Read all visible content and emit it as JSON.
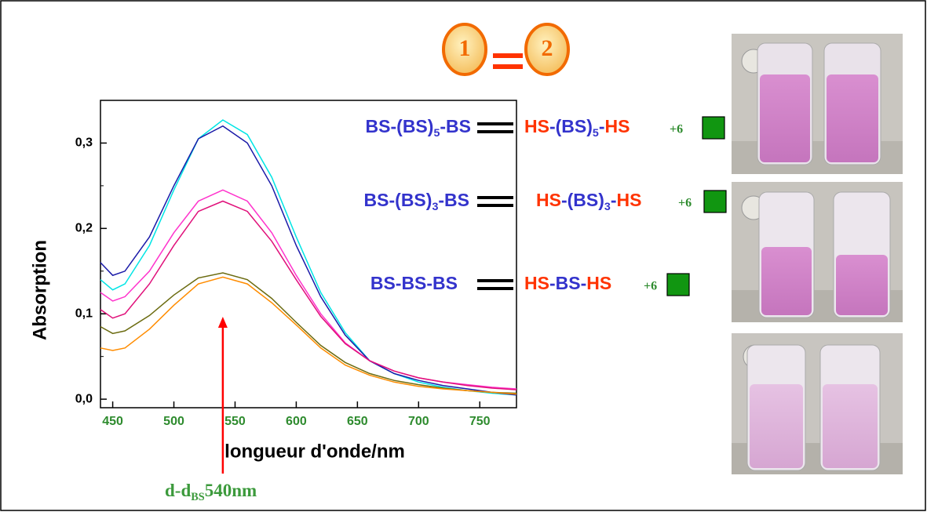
{
  "chart_data": {
    "type": "line",
    "ylabel": "Absorption",
    "xlabel": "longueur d'onde/nm",
    "x": [
      440,
      450,
      460,
      480,
      500,
      520,
      540,
      560,
      580,
      600,
      620,
      640,
      660,
      680,
      700,
      720,
      740,
      760,
      780
    ],
    "series": [
      {
        "color": "#00e5e5",
        "values": [
          0.14,
          0.128,
          0.135,
          0.18,
          0.245,
          0.305,
          0.327,
          0.31,
          0.26,
          0.19,
          0.125,
          0.078,
          0.045,
          0.03,
          0.02,
          0.014,
          0.01,
          0.007,
          0.005
        ]
      },
      {
        "color": "#1a1aa8",
        "values": [
          0.16,
          0.145,
          0.15,
          0.19,
          0.25,
          0.305,
          0.32,
          0.3,
          0.25,
          0.18,
          0.12,
          0.075,
          0.045,
          0.03,
          0.022,
          0.016,
          0.012,
          0.008,
          0.005
        ]
      },
      {
        "color": "#ff33cc",
        "values": [
          0.125,
          0.115,
          0.12,
          0.15,
          0.195,
          0.232,
          0.245,
          0.232,
          0.195,
          0.145,
          0.1,
          0.066,
          0.045,
          0.033,
          0.025,
          0.02,
          0.017,
          0.014,
          0.012
        ]
      },
      {
        "color": "#e0107a",
        "values": [
          0.105,
          0.095,
          0.1,
          0.135,
          0.18,
          0.22,
          0.232,
          0.22,
          0.185,
          0.14,
          0.097,
          0.065,
          0.045,
          0.033,
          0.025,
          0.02,
          0.016,
          0.013,
          0.011
        ]
      },
      {
        "color": "#6b6b10",
        "values": [
          0.085,
          0.077,
          0.08,
          0.098,
          0.122,
          0.142,
          0.148,
          0.14,
          0.118,
          0.09,
          0.063,
          0.043,
          0.03,
          0.022,
          0.017,
          0.013,
          0.01,
          0.008,
          0.007
        ]
      },
      {
        "color": "#ff8c00",
        "values": [
          0.06,
          0.057,
          0.06,
          0.082,
          0.11,
          0.135,
          0.143,
          0.135,
          0.113,
          0.087,
          0.06,
          0.04,
          0.028,
          0.02,
          0.015,
          0.012,
          0.01,
          0.008,
          0.006
        ]
      }
    ],
    "xlim": [
      440,
      780
    ],
    "ylim": [
      -0.01,
      0.35
    ],
    "xticks": [
      450,
      500,
      550,
      600,
      650,
      700,
      750
    ],
    "yticks": [
      {
        "value": 0,
        "label": "0,0"
      },
      {
        "value": 0.1,
        "label": "0,1"
      },
      {
        "value": 0.2,
        "label": "0,2"
      },
      {
        "value": 0.3,
        "label": "0,3"
      }
    ],
    "x_tick_color": "#2e8b2e",
    "peak_annotation": {
      "x": 540,
      "parts": [
        {
          "text": "d-d"
        },
        {
          "text": "BS",
          "sub": true
        },
        {
          "text": "540nm"
        }
      ]
    },
    "equilibrium_labels": [
      "1",
      "2"
    ],
    "equilibria": [
      {
        "left": [
          {
            "text": "BS-(BS)",
            "color": "#3333cc"
          },
          {
            "text": "5",
            "color": "#3333cc",
            "sub": true
          },
          {
            "text": "-BS",
            "color": "#3333cc"
          }
        ],
        "right": [
          {
            "text": "HS",
            "color": "#ff3300"
          },
          {
            "text": "-(BS)",
            "color": "#3333cc"
          },
          {
            "text": "5",
            "color": "#3333cc",
            "sub": true
          },
          {
            "text": "-",
            "color": "#3333cc"
          },
          {
            "text": "HS",
            "color": "#ff3300"
          }
        ],
        "extra": "+6"
      },
      {
        "left": [
          {
            "text": "BS-(BS)",
            "color": "#3333cc"
          },
          {
            "text": "3",
            "color": "#3333cc",
            "sub": true
          },
          {
            "text": "-BS",
            "color": "#3333cc"
          }
        ],
        "right": [
          {
            "text": "HS",
            "color": "#ff3300"
          },
          {
            "text": "-(BS)",
            "color": "#3333cc"
          },
          {
            "text": "3",
            "color": "#3333cc",
            "sub": true
          },
          {
            "text": "-",
            "color": "#3333cc"
          },
          {
            "text": "HS",
            "color": "#ff3300"
          }
        ],
        "extra": "+6"
      },
      {
        "left": [
          {
            "text": "BS-BS-BS",
            "color": "#3333cc"
          }
        ],
        "right": [
          {
            "text": "HS",
            "color": "#ff3300"
          },
          {
            "text": "-BS-",
            "color": "#3333cc"
          },
          {
            "text": "HS",
            "color": "#ff3300"
          }
        ],
        "extra": "+6"
      }
    ]
  }
}
